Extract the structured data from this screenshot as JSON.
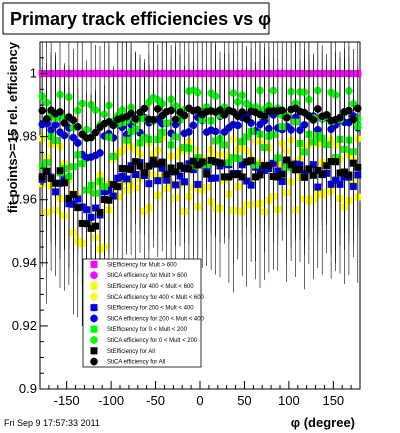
{
  "chart_data": {
    "type": "scatter",
    "title": "Primary track efficiencies vs φ",
    "xlabel": "φ (degree)",
    "ylabel": "fit points>=15 rel. efficiency",
    "xlim": [
      -180,
      180
    ],
    "ylim": [
      0.9,
      1.01
    ],
    "x_ticks": [
      "-150",
      "-100",
      "-50",
      "0",
      "50",
      "100",
      "150"
    ],
    "y_ticks": [
      "0.9",
      "0.92",
      "0.94",
      "0.96",
      "0.98",
      "1"
    ],
    "legend_position": "bottom-center",
    "grid": false,
    "series": [
      {
        "name": "StEfficiency  for Mult > 600",
        "color": "#ff00ff",
        "marker": "square",
        "level": 1.0,
        "spread": 0.0,
        "dip": 0.0
      },
      {
        "name": "StiCA efficiency  for Mult > 600",
        "color": "#ff00ff",
        "marker": "circle",
        "level": 1.0,
        "spread": 0.0,
        "dip": 0.0
      },
      {
        "name": "StEfficiency  for 400 < Mult < 600",
        "color": "#ffff00",
        "marker": "square",
        "level": 0.962,
        "spread": 0.006,
        "dip": 0.02
      },
      {
        "name": "StiCA efficiency  for 400 < Mult < 600",
        "color": "#ffff00",
        "marker": "circle",
        "level": 0.975,
        "spread": 0.005,
        "dip": 0.015
      },
      {
        "name": "StEfficiency  for 200 < Mult < 400",
        "color": "#0000ff",
        "marker": "square",
        "level": 0.968,
        "spread": 0.004,
        "dip": 0.015
      },
      {
        "name": "StiCA efficiency  for 200 < Mult < 400",
        "color": "#0000ff",
        "marker": "circle",
        "level": 0.984,
        "spread": 0.003,
        "dip": 0.008
      },
      {
        "name": "StEfficiency  for 0 < Mult < 200",
        "color": "#00ff00",
        "marker": "square",
        "level": 0.978,
        "spread": 0.008,
        "dip": 0.01
      },
      {
        "name": "StiCA efficiency  for 0 < Mult < 200",
        "color": "#00ff00",
        "marker": "circle",
        "level": 0.99,
        "spread": 0.005,
        "dip": 0.004
      },
      {
        "name": "StEfficiency  for All",
        "color": "#000000",
        "marker": "square",
        "level": 0.97,
        "spread": 0.003,
        "dip": 0.018
      },
      {
        "name": "StiCA efficiency  for All",
        "color": "#000000",
        "marker": "circle",
        "level": 0.987,
        "spread": 0.002,
        "dip": 0.006
      }
    ]
  },
  "footer": {
    "timestamp": "Fri Sep  9 17:57:33 2011"
  }
}
